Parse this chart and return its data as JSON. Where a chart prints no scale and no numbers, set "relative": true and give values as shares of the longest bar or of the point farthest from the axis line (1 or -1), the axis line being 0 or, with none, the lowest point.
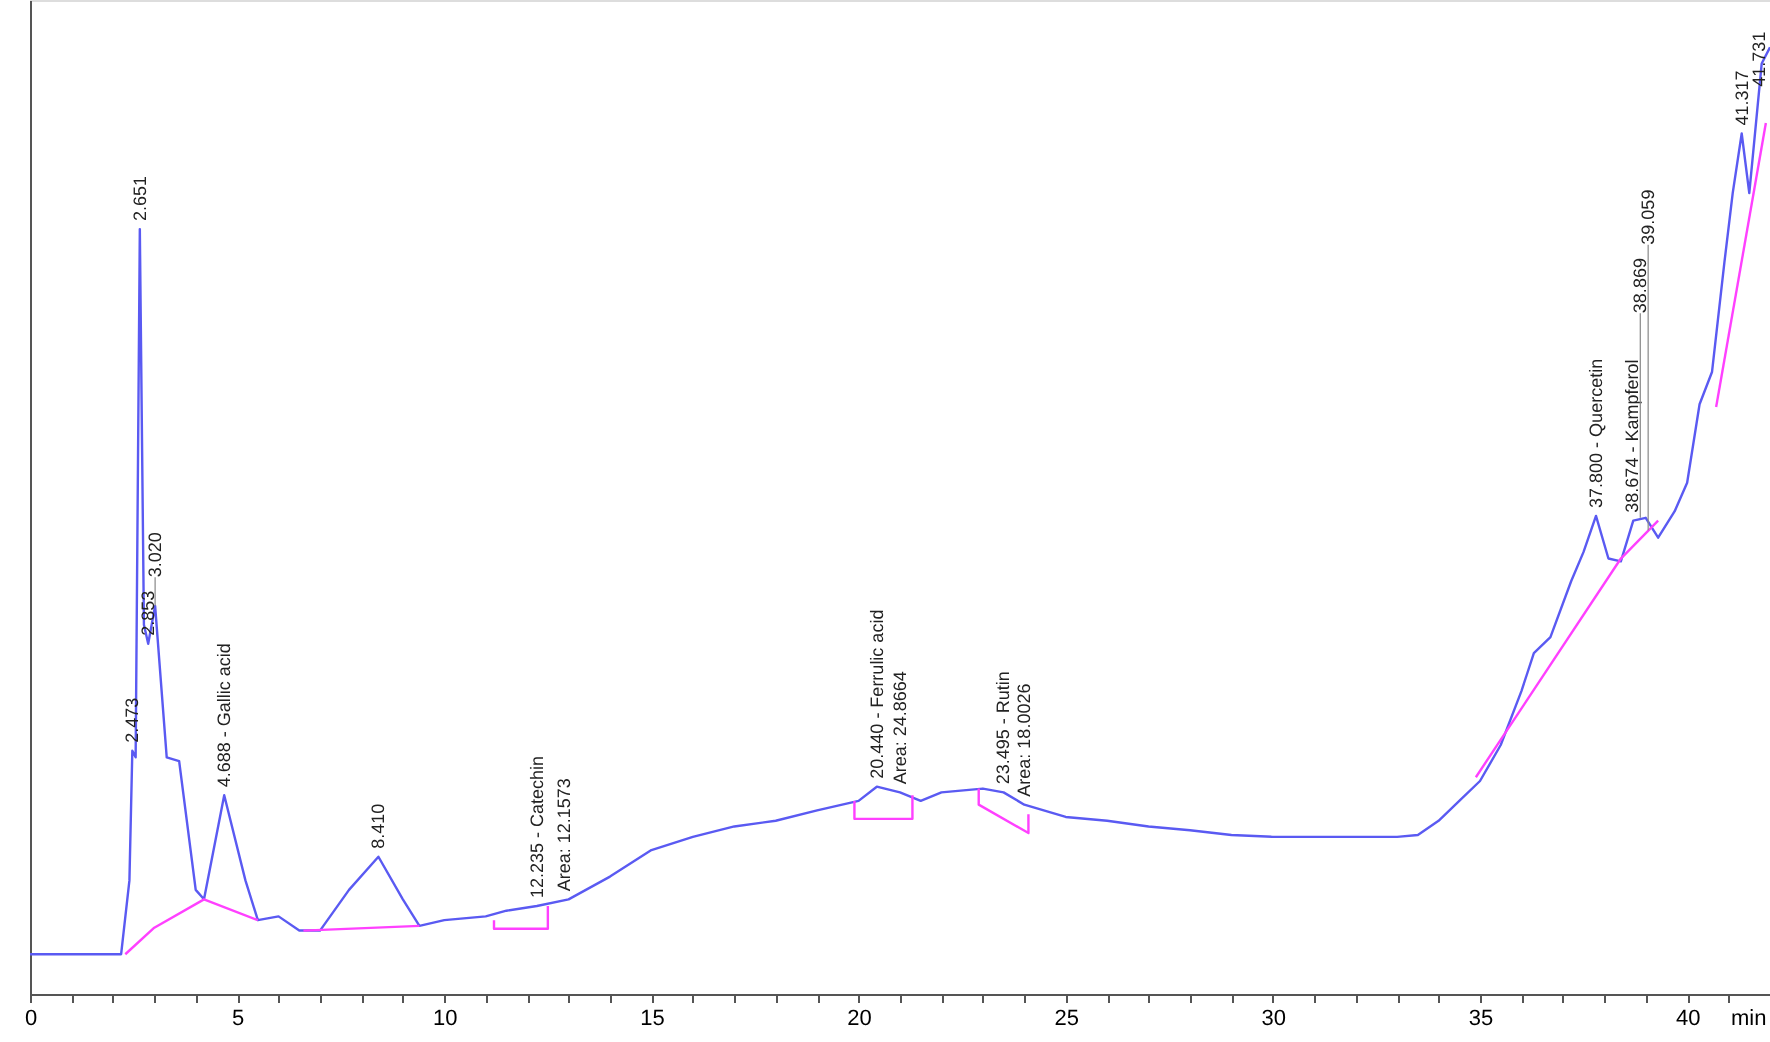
{
  "chart_data": {
    "type": "line",
    "relative": true,
    "xlabel": "min",
    "xlim": [
      0,
      42
    ],
    "xticks": [
      0,
      {
        "value": 1,
        "label": null
      },
      {
        "value": 2,
        "label": null
      },
      {
        "value": 3,
        "label": null
      },
      {
        "value": 4,
        "label": null
      },
      5,
      {
        "value": 6,
        "label": null
      },
      {
        "value": 7,
        "label": null
      },
      {
        "value": 8,
        "label": null
      },
      {
        "value": 9,
        "label": null
      },
      10,
      {
        "value": 11,
        "label": null
      },
      {
        "value": 12,
        "label": null
      },
      {
        "value": 13,
        "label": null
      },
      {
        "value": 14,
        "label": null
      },
      15,
      {
        "value": 16,
        "label": null
      },
      {
        "value": 17,
        "label": null
      },
      {
        "value": 18,
        "label": null
      },
      {
        "value": 19,
        "label": null
      },
      20,
      {
        "value": 21,
        "label": null
      },
      {
        "value": 22,
        "label": null
      },
      {
        "value": 23,
        "label": null
      },
      {
        "value": 24,
        "label": null
      },
      25,
      {
        "value": 26,
        "label": null
      },
      {
        "value": 27,
        "label": null
      },
      {
        "value": 28,
        "label": null
      },
      {
        "value": 29,
        "label": null
      },
      30,
      {
        "value": 31,
        "label": null
      },
      {
        "value": 32,
        "label": null
      },
      {
        "value": 33,
        "label": null
      },
      {
        "value": 34,
        "label": null
      },
      35,
      {
        "value": 36,
        "label": null
      },
      {
        "value": 37,
        "label": null
      },
      {
        "value": 38,
        "label": null
      },
      {
        "value": 39,
        "label": null
      },
      40,
      {
        "value": 41,
        "label": null
      },
      {
        "value": 42,
        "label": null
      }
    ],
    "grid": false,
    "marker": "none",
    "line_style": "solid",
    "series": [
      {
        "color": "#5a5af2",
        "x": [
          0,
          2.2,
          2.4,
          2.47,
          2.55,
          2.651,
          2.75,
          2.853,
          3.02,
          3.3,
          3.6,
          4.0,
          4.2,
          4.688,
          5.2,
          5.5,
          6.0,
          6.5,
          7.0,
          7.7,
          8.41,
          9.0,
          9.4,
          10,
          11,
          11.5,
          12.235,
          13,
          14,
          15,
          16,
          17,
          18,
          19,
          20,
          20.44,
          21,
          21.5,
          22,
          23,
          23.5,
          24,
          25,
          26,
          27,
          28,
          29,
          30,
          31,
          32,
          33,
          33.5,
          34,
          34.5,
          35,
          35.5,
          36,
          36.3,
          36.7,
          37.2,
          37.5,
          37.8,
          38.1,
          38.4,
          38.7,
          39.0,
          39.3,
          39.7,
          40.0,
          40.3,
          40.6,
          40.9,
          41.1,
          41.317,
          41.5,
          41.8,
          42.0
        ],
        "values": [
          0.042,
          0.042,
          0.12,
          0.257,
          0.25,
          0.808,
          0.39,
          0.37,
          0.41,
          0.25,
          0.246,
          0.11,
          0.1,
          0.21,
          0.12,
          0.078,
          0.082,
          0.067,
          0.067,
          0.11,
          0.145,
          0.1,
          0.072,
          0.078,
          0.082,
          0.088,
          0.093,
          0.1,
          0.124,
          0.152,
          0.166,
          0.177,
          0.183,
          0.194,
          0.204,
          0.219,
          0.213,
          0.204,
          0.213,
          0.217,
          0.213,
          0.2,
          0.187,
          0.183,
          0.177,
          0.173,
          0.168,
          0.166,
          0.166,
          0.166,
          0.166,
          0.168,
          0.183,
          0.204,
          0.225,
          0.263,
          0.32,
          0.36,
          0.377,
          0.436,
          0.467,
          0.505,
          0.46,
          0.457,
          0.5,
          0.503,
          0.482,
          0.51,
          0.54,
          0.623,
          0.657,
          0.773,
          0.846,
          0.909,
          0.846,
          0.983,
          1.0
        ]
      },
      {
        "color": "#ff40ff",
        "x": [
          2.3,
          3.0,
          4.2,
          5.5,
          6.0,
          6.6,
          9.4,
          10.0,
          11.2,
          11.2,
          12.5,
          12.5,
          13.0,
          19.9,
          19.9,
          21.3,
          21.3,
          22.0,
          22.9,
          22.9,
          24.1,
          24.1,
          30.0,
          34.9,
          38.4,
          39.3,
          40.0,
          40.7,
          41.9
        ],
        "values": [
          0.042,
          0.07,
          0.1,
          0.078,
          null,
          0.067,
          0.072,
          null,
          0.078,
          0.069,
          0.069,
          0.093,
          null,
          0.204,
          0.185,
          0.185,
          0.21,
          null,
          0.217,
          0.2,
          0.17,
          0.19,
          null,
          0.229,
          0.46,
          0.5,
          null,
          0.62,
          0.92
        ]
      }
    ],
    "annotations": [
      {
        "text": "2.473",
        "x": 2.473,
        "y": 0.257
      },
      {
        "text": "2.651",
        "x": 2.651,
        "y": 0.808
      },
      {
        "text": "2.853",
        "x": 2.853,
        "y": 0.37
      },
      {
        "text": "3.020",
        "x": 3.02,
        "y": 0.41
      },
      {
        "text": "4.688 -  Gallic acid",
        "x": 4.688,
        "y": 0.21
      },
      {
        "text": "8.410",
        "x": 8.41,
        "y": 0.145
      },
      {
        "text": "12.235 -  Catechin",
        "x": 12.235,
        "y": 0.093
      },
      {
        "text": "Area: 12.1573",
        "x": 12.9,
        "y": 0.1
      },
      {
        "text": "20.440 -  Ferrulic acid",
        "x": 20.44,
        "y": 0.219
      },
      {
        "text": "Area: 24.8664",
        "x": 21.0,
        "y": 0.213
      },
      {
        "text": "23.495 -  Rutin",
        "x": 23.495,
        "y": 0.213
      },
      {
        "text": "Area: 18.0026",
        "x": 24.0,
        "y": 0.2
      },
      {
        "text": "37.800 -  Quercetin",
        "x": 37.8,
        "y": 0.505
      },
      {
        "text": "38.674 -  Kampferol",
        "x": 38.674,
        "y": 0.5
      },
      {
        "text": "38.869",
        "x": 38.869,
        "y": 0.503
      },
      {
        "text": "39.059",
        "x": 39.059,
        "y": 0.49
      },
      {
        "text": "41.317",
        "x": 41.317,
        "y": 0.909
      },
      {
        "text": "41.731",
        "x": 41.731,
        "y": 0.95
      }
    ]
  }
}
